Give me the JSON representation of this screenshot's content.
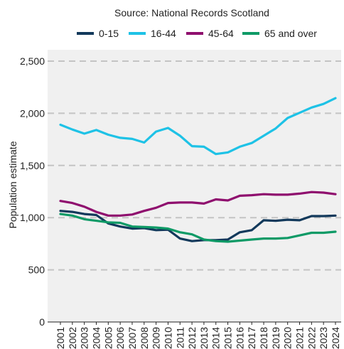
{
  "chart_data": {
    "type": "line",
    "subtitle": "Source: National Records Scotland",
    "ylabel": "Population estimate",
    "xlabel": "",
    "ylim": [
      0,
      2500
    ],
    "yticks": [
      0,
      500,
      1000,
      1500,
      2000,
      2500
    ],
    "ytick_labels": [
      "0",
      "500",
      "1,000",
      "1,500",
      "2,000",
      "2,500"
    ],
    "grid": "horizontal dashed",
    "legend_position": "top",
    "x": [
      "2001",
      "2002",
      "2003",
      "2004",
      "2005",
      "2006",
      "2007",
      "2008",
      "2009",
      "2010",
      "2011",
      "2012",
      "2013",
      "2014",
      "2015",
      "2016",
      "2017",
      "2018",
      "2019",
      "2020",
      "2021",
      "2022",
      "2023",
      "2024"
    ],
    "series": [
      {
        "name": "0-15",
        "color": "#12395b",
        "values": [
          1065,
          1055,
          1035,
          1025,
          945,
          915,
          895,
          900,
          880,
          885,
          800,
          775,
          785,
          785,
          790,
          860,
          880,
          975,
          970,
          980,
          975,
          1015,
          1015,
          1020
        ]
      },
      {
        "name": "16-44",
        "color": "#1ec2e6",
        "values": [
          1890,
          1845,
          1805,
          1840,
          1795,
          1765,
          1755,
          1720,
          1825,
          1860,
          1785,
          1685,
          1680,
          1610,
          1625,
          1680,
          1715,
          1785,
          1855,
          1955,
          2005,
          2055,
          2090,
          2145
        ]
      },
      {
        "name": "45-64",
        "color": "#8f0f6e",
        "values": [
          1160,
          1140,
          1105,
          1055,
          1020,
          1020,
          1030,
          1065,
          1095,
          1140,
          1145,
          1145,
          1135,
          1175,
          1165,
          1210,
          1215,
          1225,
          1220,
          1220,
          1230,
          1245,
          1240,
          1225
        ]
      },
      {
        "name": "65 and over",
        "color": "#0e9a66",
        "values": [
          1035,
          1020,
          985,
          970,
          955,
          950,
          915,
          910,
          905,
          895,
          860,
          840,
          790,
          775,
          770,
          780,
          790,
          800,
          800,
          805,
          830,
          855,
          855,
          865
        ]
      }
    ]
  }
}
